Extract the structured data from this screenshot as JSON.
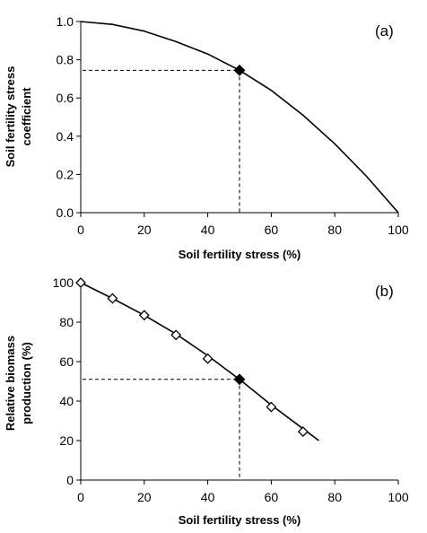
{
  "chart_data": [
    {
      "panel": "(a)",
      "type": "line",
      "xlabel": "Soil fertility stress (%)",
      "ylabel_lines": [
        "Soil fertility stress",
        "coefficient"
      ],
      "xlim": [
        0,
        100
      ],
      "ylim": [
        0,
        1.0
      ],
      "xticks": [
        "0",
        "20",
        "40",
        "60",
        "80",
        "100"
      ],
      "yticks": [
        "0.0",
        "0.2",
        "0.4",
        "0.6",
        "0.8",
        "1.0"
      ],
      "curve": {
        "x": [
          0,
          10,
          20,
          30,
          40,
          50,
          60,
          70,
          80,
          90,
          100
        ],
        "y": [
          1.0,
          0.985,
          0.95,
          0.895,
          0.83,
          0.745,
          0.64,
          0.51,
          0.36,
          0.19,
          0.0
        ]
      },
      "highlight_point": {
        "x": 50,
        "y": 0.745,
        "marker": "filled-diamond"
      },
      "grid": false,
      "colors": {
        "line": "#000000",
        "marker": "#000000"
      }
    },
    {
      "panel": "(b)",
      "type": "line",
      "xlabel": "Soil fertility stress (%)",
      "ylabel_lines": [
        "Relative biomass",
        "production (%)"
      ],
      "xlim": [
        0,
        100
      ],
      "ylim": [
        0,
        100
      ],
      "xticks": [
        "0",
        "20",
        "40",
        "60",
        "80",
        "100"
      ],
      "yticks": [
        "0",
        "20",
        "40",
        "60",
        "80",
        "100"
      ],
      "points": {
        "x": [
          0,
          10,
          20,
          30,
          40,
          60,
          70
        ],
        "y": [
          100,
          92,
          83.5,
          73.5,
          61.5,
          37,
          24.5
        ],
        "marker": "open-diamond"
      },
      "fit_line": {
        "x": [
          0,
          10,
          20,
          30,
          40,
          50,
          60,
          70,
          75
        ],
        "y": [
          100,
          92,
          83.5,
          74,
          63,
          51,
          38,
          26,
          20
        ]
      },
      "highlight_point": {
        "x": 50,
        "y": 51,
        "marker": "filled-diamond"
      },
      "grid": false,
      "colors": {
        "line": "#000000",
        "marker": "#000000"
      }
    }
  ]
}
